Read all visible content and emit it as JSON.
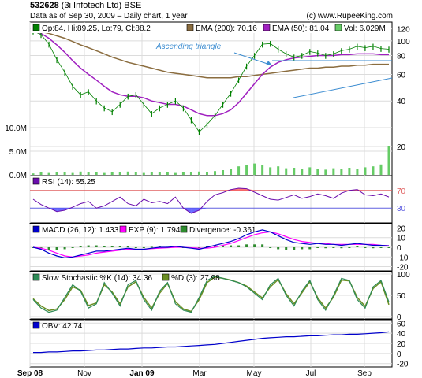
{
  "header": {
    "ticker": "532628",
    "company": "(3i Infotech Ltd) BSE",
    "subtitle": "Data as of Sep 30, 2009  – Daily chart, 1 year",
    "brand": "(c) www.RupeeKing.com"
  },
  "legend": {
    "ohlc": "Op:84, Hi:89.25, Lo:79, Cl:88.2",
    "ema200": "EMA (200): 70.16",
    "ema50": "EMA (50): 81.04",
    "vol": "Vol: 6.029M",
    "rsi": "RSI (14): 55.25",
    "macd": "MACD (26, 12): 1.433",
    "exp": "EXP (9): 1.794",
    "divergence": "Divergence: -0.361",
    "stoch_k": "Slow Stochastic %K (14): 34.36",
    "stoch_d": "%D (3): 27.98",
    "obv": "OBV: 42.74"
  },
  "annotation": "Ascending triangle",
  "colors": {
    "price": "#008000",
    "ema200": "#8b6d3f",
    "ema50": "#a020c0",
    "volume": "#66cc66",
    "rsi": "#6a0dad",
    "macd": "#0000cc",
    "exp": "#ff00ff",
    "stoch_k": "#2e8b57",
    "stoch_d": "#6b8e23",
    "obv": "#0000cc",
    "trendline": "#3d8dd1"
  },
  "chart_data": {
    "type": "line",
    "months": [
      "Sep 08",
      "Nov",
      "Jan 09",
      "Mar",
      "May",
      "Jul",
      "Sep"
    ],
    "price_axis": {
      "ticks": [
        "120",
        "100",
        "80",
        "60",
        "40",
        "20"
      ],
      "scale": "log"
    },
    "volume_axis": {
      "ticks": [
        "10.0M",
        "5.0M",
        "0.0M"
      ]
    },
    "rsi_axis": {
      "ticks": [
        "70",
        "30"
      ]
    },
    "macd_axis": {
      "ticks": [
        "20",
        "10",
        "0",
        "-10",
        "-20"
      ]
    },
    "stoch_axis": {
      "ticks": [
        "100",
        "50",
        "0"
      ]
    },
    "obv_axis": {
      "ticks": [
        "60",
        "40",
        "20",
        "0",
        "-20"
      ]
    },
    "series": [
      {
        "name": "Close",
        "values": [
          116,
          110,
          95,
          75,
          62,
          50,
          44,
          46,
          40,
          36,
          34,
          38,
          43,
          44,
          38,
          33,
          36,
          38,
          40,
          36,
          30,
          25,
          28,
          32,
          38,
          45,
          55,
          68,
          80,
          95,
          96,
          88,
          82,
          78,
          80,
          85,
          83,
          80,
          82,
          86,
          88,
          92,
          90,
          92,
          89,
          88
        ]
      },
      {
        "name": "EMA (200)",
        "values": [
          116,
          115,
          112,
          108,
          104,
          99,
          94,
          90,
          86,
          82,
          78,
          75,
          72,
          70,
          68,
          66,
          64,
          62,
          61,
          60,
          59,
          58,
          57,
          57,
          57,
          57,
          58,
          58,
          59,
          60,
          61,
          62,
          63,
          64,
          65,
          66,
          66,
          67,
          67,
          68,
          68,
          69,
          69,
          70,
          70,
          70
        ]
      },
      {
        "name": "EMA (50)",
        "values": [
          116,
          112,
          104,
          94,
          84,
          74,
          66,
          60,
          55,
          50,
          46,
          44,
          43,
          43,
          42,
          40,
          39,
          38,
          38,
          37,
          35,
          33,
          32,
          32,
          33,
          35,
          39,
          45,
          52,
          60,
          67,
          72,
          75,
          77,
          78,
          79,
          80,
          80,
          80,
          81,
          81,
          82,
          82,
          82,
          81,
          81
        ]
      },
      {
        "name": "Volume",
        "values": [
          0.3,
          0.5,
          0.4,
          0.6,
          0.5,
          0.4,
          0.7,
          0.5,
          0.6,
          0.4,
          0.5,
          0.6,
          0.7,
          0.5,
          0.4,
          0.5,
          0.6,
          0.5,
          0.4,
          0.6,
          0.5,
          0.7,
          0.6,
          0.8,
          1.0,
          1.3,
          1.8,
          2.1,
          2.4,
          2.0,
          1.6,
          1.8,
          1.4,
          1.5,
          1.2,
          1.6,
          1.3,
          1.1,
          1.4,
          1.2,
          1.5,
          1.3,
          1.6,
          1.8,
          2.2,
          6.0
        ]
      },
      {
        "name": "RSI (14)",
        "values": [
          50,
          38,
          30,
          22,
          25,
          32,
          40,
          45,
          30,
          35,
          45,
          55,
          40,
          35,
          50,
          42,
          45,
          40,
          55,
          30,
          18,
          25,
          45,
          60,
          65,
          72,
          75,
          74,
          66,
          58,
          50,
          48,
          54,
          60,
          52,
          56,
          62,
          58,
          52,
          64,
          70,
          72,
          60,
          58,
          62,
          55.25
        ]
      },
      {
        "name": "MACD (26, 12)",
        "values": [
          0,
          -2,
          -6,
          -9,
          -11,
          -10,
          -8,
          -6,
          -4,
          -4,
          -3,
          -2,
          -1,
          -2,
          -2,
          -1,
          0,
          0,
          1,
          0,
          -1,
          -2,
          0,
          2,
          4,
          6,
          9,
          13,
          16,
          18,
          16,
          12,
          8,
          5,
          4,
          3,
          4,
          3,
          3,
          2,
          3,
          4,
          3,
          2,
          2,
          1.433
        ]
      },
      {
        "name": "EXP (9)",
        "values": [
          0,
          -1,
          -3,
          -6,
          -9,
          -10,
          -9,
          -8,
          -6,
          -5,
          -4,
          -3,
          -2,
          -2,
          -2,
          -1.5,
          -1,
          -0.5,
          0,
          0,
          -0.5,
          -1,
          -1,
          0,
          2,
          4,
          7,
          10,
          13,
          15,
          16,
          14,
          11,
          8,
          6,
          5,
          4,
          4,
          3,
          3,
          3,
          3,
          3,
          3,
          2,
          1.794
        ]
      },
      {
        "name": "Divergence",
        "values": [
          0,
          -1,
          -3,
          -3,
          -2,
          0,
          1,
          2,
          2,
          1,
          1,
          1,
          1,
          0,
          0,
          0.5,
          1,
          0.5,
          1,
          0,
          -0.5,
          -1,
          1,
          2,
          2,
          2,
          2,
          3,
          3,
          3,
          0,
          -2,
          -3,
          -3,
          -2,
          -2,
          0,
          -1,
          0,
          -1,
          0,
          1,
          0,
          -1,
          0,
          -0.361
        ]
      },
      {
        "name": "Slow Stochastic %K (14)",
        "values": [
          40,
          20,
          10,
          15,
          45,
          75,
          60,
          20,
          30,
          80,
          55,
          25,
          75,
          85,
          40,
          15,
          60,
          80,
          30,
          15,
          10,
          45,
          85,
          95,
          90,
          85,
          80,
          70,
          55,
          40,
          75,
          90,
          50,
          25,
          60,
          85,
          40,
          15,
          50,
          90,
          85,
          40,
          20,
          70,
          85,
          34.36
        ]
      },
      {
        "name": "%D (3)",
        "values": [
          42,
          25,
          14,
          18,
          40,
          70,
          62,
          26,
          32,
          75,
          58,
          30,
          70,
          82,
          45,
          20,
          55,
          78,
          35,
          18,
          12,
          40,
          80,
          93,
          90,
          86,
          80,
          72,
          58,
          44,
          70,
          87,
          54,
          30,
          56,
          82,
          44,
          20,
          46,
          86,
          84,
          45,
          24,
          66,
          82,
          27.98
        ]
      },
      {
        "name": "OBV",
        "values": [
          2,
          2,
          3,
          3,
          4,
          5,
          5,
          6,
          7,
          7,
          8,
          9,
          9,
          10,
          11,
          11,
          12,
          13,
          13,
          14,
          15,
          16,
          17,
          18,
          20,
          22,
          24,
          26,
          28,
          30,
          31,
          32,
          33,
          33,
          34,
          35,
          35,
          36,
          37,
          37,
          38,
          38,
          39,
          40,
          41,
          42.74
        ]
      }
    ]
  }
}
